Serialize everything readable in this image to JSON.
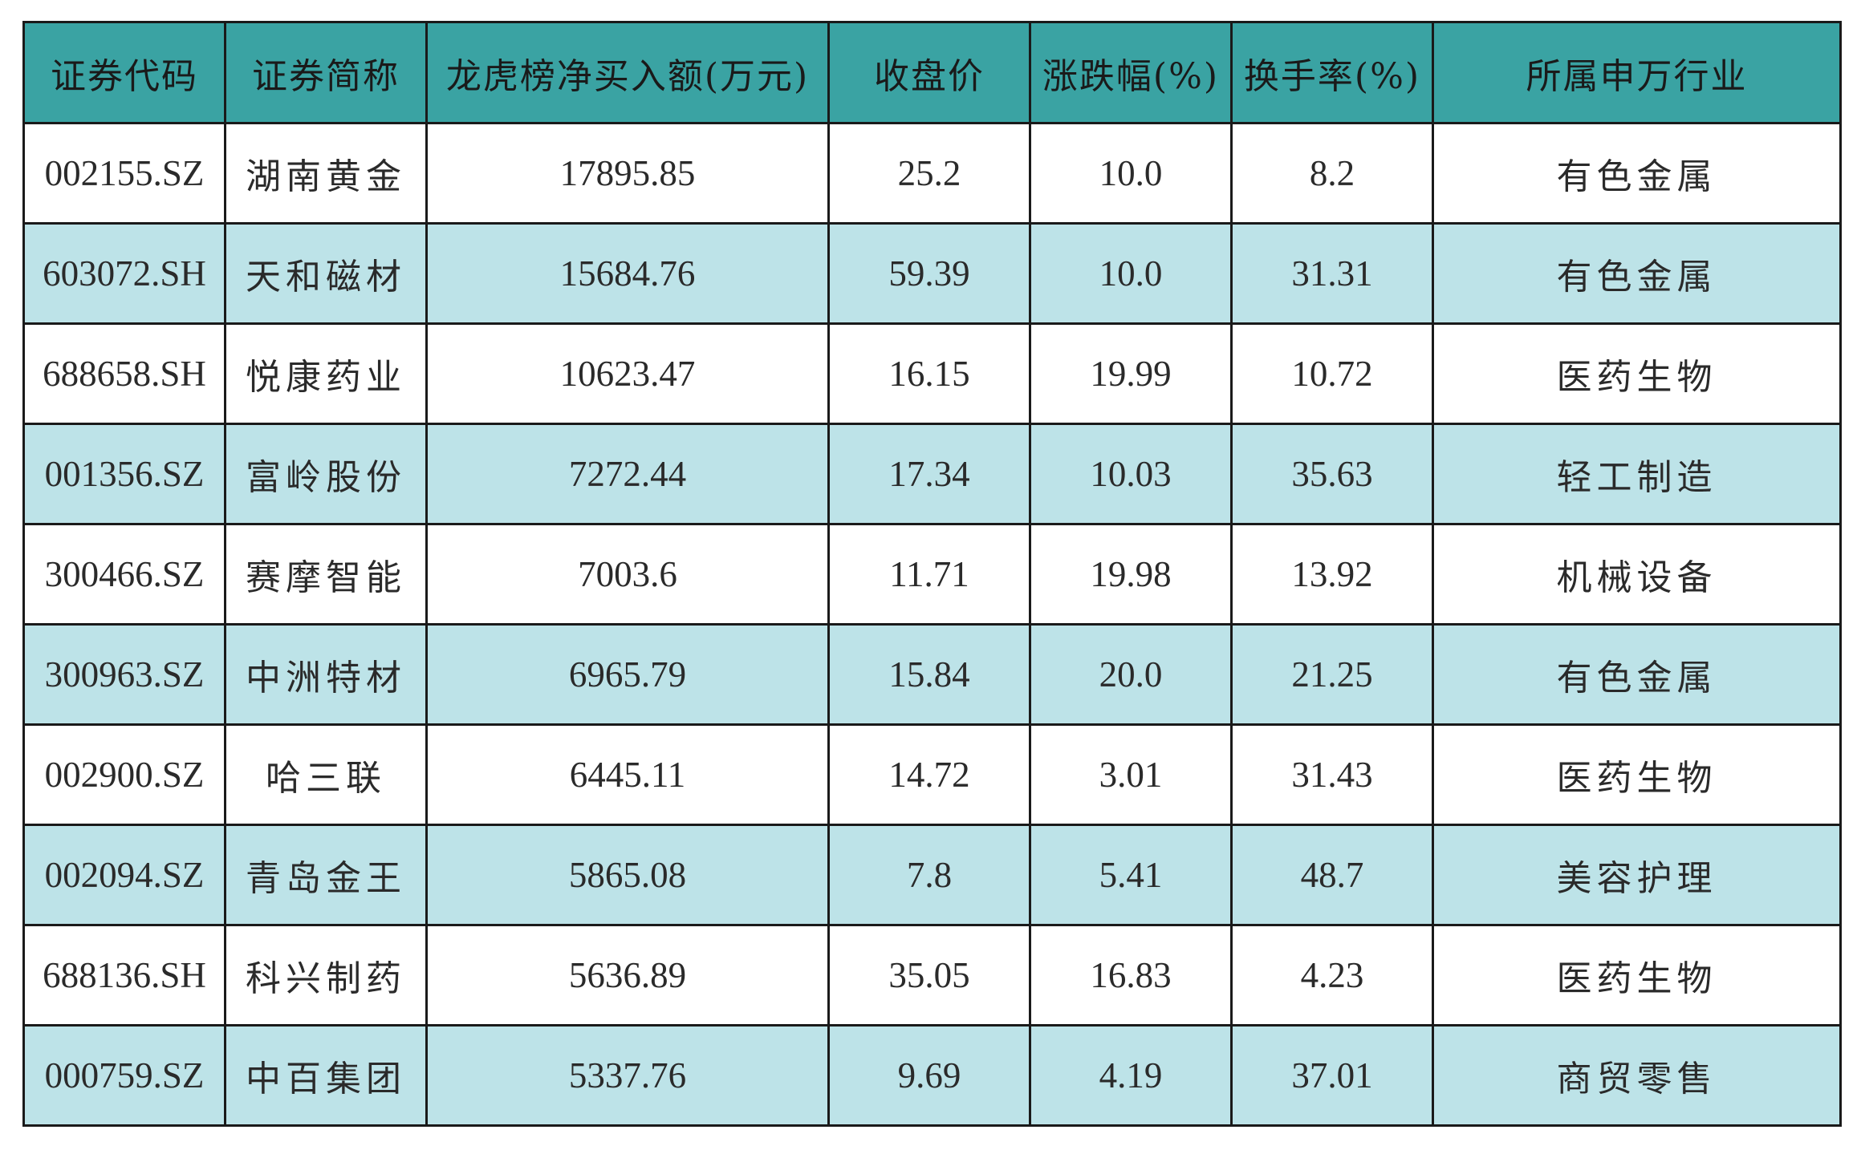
{
  "table": {
    "headers": [
      "证券代码",
      "证券简称",
      "龙虎榜净买入额(万元)",
      "收盘价",
      "涨跌幅(%)",
      "换手率(%)",
      "所属申万行业"
    ],
    "rows": [
      {
        "code": "002155.SZ",
        "name": "湖南黄金",
        "net_buy": "17895.85",
        "close": "25.2",
        "change": "10.0",
        "turnover": "8.2",
        "industry": "有色金属"
      },
      {
        "code": "603072.SH",
        "name": "天和磁材",
        "net_buy": "15684.76",
        "close": "59.39",
        "change": "10.0",
        "turnover": "31.31",
        "industry": "有色金属"
      },
      {
        "code": "688658.SH",
        "name": "悦康药业",
        "net_buy": "10623.47",
        "close": "16.15",
        "change": "19.99",
        "turnover": "10.72",
        "industry": "医药生物"
      },
      {
        "code": "001356.SZ",
        "name": "富岭股份",
        "net_buy": "7272.44",
        "close": "17.34",
        "change": "10.03",
        "turnover": "35.63",
        "industry": "轻工制造"
      },
      {
        "code": "300466.SZ",
        "name": "赛摩智能",
        "net_buy": "7003.6",
        "close": "11.71",
        "change": "19.98",
        "turnover": "13.92",
        "industry": "机械设备"
      },
      {
        "code": "300963.SZ",
        "name": "中洲特材",
        "net_buy": "6965.79",
        "close": "15.84",
        "change": "20.0",
        "turnover": "21.25",
        "industry": "有色金属"
      },
      {
        "code": "002900.SZ",
        "name": "哈三联",
        "net_buy": "6445.11",
        "close": "14.72",
        "change": "3.01",
        "turnover": "31.43",
        "industry": "医药生物"
      },
      {
        "code": "002094.SZ",
        "name": "青岛金王",
        "net_buy": "5865.08",
        "close": "7.8",
        "change": "5.41",
        "turnover": "48.7",
        "industry": "美容护理"
      },
      {
        "code": "688136.SH",
        "name": "科兴制药",
        "net_buy": "5636.89",
        "close": "35.05",
        "change": "16.83",
        "turnover": "4.23",
        "industry": "医药生物"
      },
      {
        "code": "000759.SZ",
        "name": "中百集团",
        "net_buy": "5337.76",
        "close": "9.69",
        "change": "4.19",
        "turnover": "37.01",
        "industry": "商贸零售"
      }
    ]
  },
  "colors": {
    "header_bg": "#3aa3a3",
    "stripe_bg": "#bde3e8",
    "plain_bg": "#ffffff",
    "border": "#1a1a1a"
  }
}
